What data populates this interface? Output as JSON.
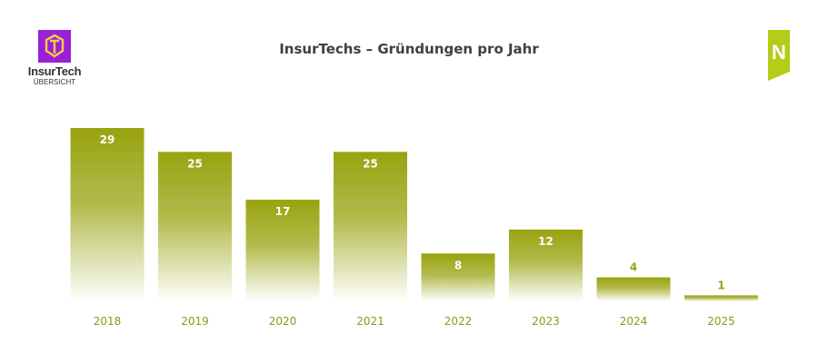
{
  "logo_left": {
    "name": "InsurTech",
    "sub": "ÜBERSICHT",
    "color": "#9b1fd6"
  },
  "logo_right": {
    "letter": "N",
    "color": "#b5cc18"
  },
  "chart_data": {
    "type": "bar",
    "title": "InsurTechs – Gründungen pro Jahr",
    "categories": [
      "2018",
      "2019",
      "2020",
      "2021",
      "2022",
      "2023",
      "2024",
      "2025"
    ],
    "values": [
      29,
      25,
      17,
      25,
      8,
      12,
      4,
      1
    ],
    "ylim": [
      0,
      29
    ],
    "grid": false,
    "bar_color": "#98a30e",
    "label_color_inside": "#ffffff",
    "tick_label_color": "#8a9a1a"
  }
}
